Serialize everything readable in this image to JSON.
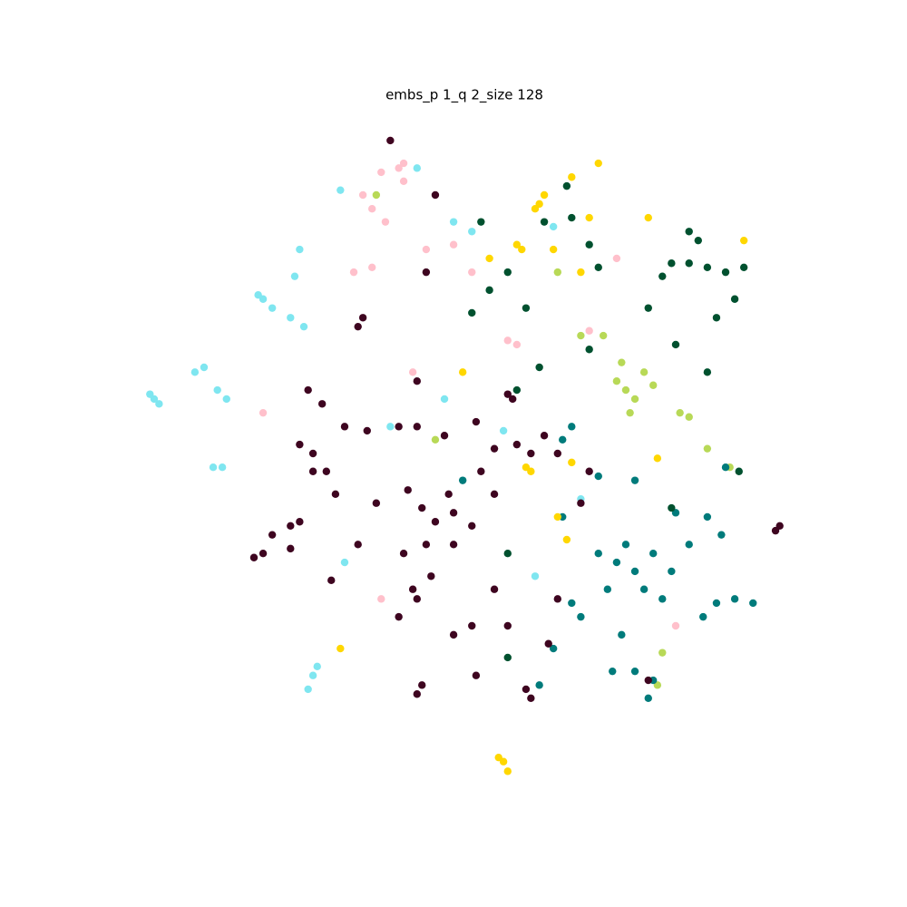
{
  "chart_data": {
    "type": "scatter",
    "title": "embs_p 1_q 2_size 128",
    "xlim": [
      0,
      100
    ],
    "ylim": [
      0,
      100
    ],
    "series": [
      {
        "color": "#7fe6f0",
        "x": [
          5.8,
          5.2,
          6.5,
          11.6,
          12.9,
          14.8,
          16.1,
          15.5,
          14.2,
          21.3,
          22.6,
          25.2,
          27.1,
          26.5,
          25.8,
          28.4,
          27.7,
          29.0,
          32.9,
          39.4,
          47.1,
          55.5,
          60.0,
          66.5,
          48.4,
          51.0,
          20.6,
          62.6,
          32.3,
          43.2
        ],
        "values": [
          57.9,
          58.6,
          57.2,
          61.8,
          62.5,
          59.2,
          57.9,
          48.0,
          48.0,
          72.4,
          71.1,
          69.7,
          68.4,
          79.6,
          75.7,
          17.8,
          15.8,
          19.1,
          34.2,
          53.9,
          57.9,
          53.3,
          32.2,
          43.4,
          83.6,
          82.2,
          73.0,
          82.9,
          88.2,
          91.4
        ]
      },
      {
        "color": "#ffc0cb",
        "x": [
          39.4,
          38.1,
          40.6,
          36.8,
          38.7,
          41.3,
          35.5,
          34.2,
          36.8,
          44.5,
          48.4,
          51.0,
          56.1,
          57.4,
          67.7,
          71.6,
          21.3,
          38.1,
          80.0,
          42.6,
          41.3
        ],
        "values": [
          95.4,
          90.8,
          91.4,
          85.5,
          83.6,
          89.5,
          87.5,
          76.3,
          77.0,
          79.6,
          80.3,
          76.3,
          66.4,
          65.8,
          67.8,
          78.3,
          55.9,
          28.9,
          25.0,
          61.8,
          92.1
        ]
      },
      {
        "color": "#b8d957",
        "x": [
          72.9,
          74.2,
          71.6,
          75.5,
          73.5,
          76.8,
          72.3,
          80.6,
          81.9,
          84.5,
          87.7,
          78.1,
          77.4,
          69.7,
          66.5,
          45.8,
          37.4,
          63.2
        ],
        "values": [
          59.2,
          57.9,
          60.5,
          61.8,
          55.9,
          59.9,
          63.2,
          55.9,
          55.3,
          50.7,
          48.0,
          21.1,
          16.4,
          67.1,
          67.1,
          52.0,
          87.5,
          76.3
        ]
      },
      {
        "color": "#007b7b",
        "x": [
          71.6,
          74.2,
          72.9,
          76.8,
          70.3,
          75.5,
          69.0,
          79.4,
          78.1,
          81.9,
          86.5,
          85.8,
          88.4,
          91.0,
          83.9,
          72.3,
          74.2,
          76.8,
          76.1,
          71.0,
          66.5,
          65.2,
          80.0,
          84.5,
          74.2,
          65.2,
          63.9,
          69.0,
          49.7,
          60.6,
          62.6,
          87.1,
          63.9
        ],
        "values": [
          34.2,
          32.9,
          36.8,
          35.5,
          30.3,
          30.3,
          35.5,
          32.9,
          28.9,
          36.8,
          38.2,
          28.3,
          28.9,
          28.3,
          26.3,
          23.7,
          18.4,
          17.1,
          14.5,
          18.4,
          26.3,
          28.3,
          41.4,
          40.8,
          46.1,
          53.9,
          52.0,
          46.7,
          46.1,
          16.4,
          21.7,
          48.0,
          40.8
        ]
      },
      {
        "color": "#00512f",
        "x": [
          79.4,
          81.9,
          84.5,
          87.1,
          88.4,
          89.7,
          83.2,
          81.9,
          76.1,
          78.1,
          85.8,
          80.0,
          84.5,
          67.7,
          65.2,
          51.0,
          53.5,
          56.1,
          58.7,
          69.0,
          52.3,
          61.3,
          64.5,
          56.1,
          56.1,
          67.7,
          60.6,
          57.4,
          89.0,
          79.4
        ],
        "values": [
          77.6,
          77.6,
          77.0,
          76.3,
          72.4,
          77.0,
          80.9,
          82.2,
          71.1,
          75.7,
          69.7,
          65.8,
          61.8,
          80.3,
          84.2,
          70.4,
          73.7,
          76.3,
          71.1,
          77.0,
          83.6,
          83.6,
          88.8,
          35.5,
          20.4,
          65.1,
          62.5,
          59.2,
          47.4,
          42.1
        ]
      },
      {
        "color": "#ffd700",
        "x": [
          57.4,
          58.1,
          60.6,
          61.3,
          60.0,
          65.2,
          67.7,
          69.0,
          76.1,
          89.7,
          62.6,
          66.5,
          58.7,
          59.4,
          65.2,
          63.2,
          64.5,
          77.4,
          55.5,
          56.1,
          54.8,
          49.7,
          32.3,
          53.5
        ],
        "values": [
          80.3,
          79.6,
          86.2,
          87.5,
          85.5,
          90.1,
          84.2,
          92.1,
          84.2,
          80.9,
          79.6,
          76.3,
          48.0,
          47.4,
          48.7,
          40.8,
          37.5,
          49.3,
          5.3,
          3.9,
          5.9,
          61.8,
          21.7,
          78.3
        ]
      },
      {
        "color": "#3e0520",
        "x": [
          35.5,
          34.8,
          44.5,
          43.2,
          27.7,
          29.7,
          26.5,
          28.4,
          30.3,
          31.6,
          28.4,
          32.9,
          36.1,
          40.6,
          41.9,
          43.9,
          45.8,
          48.4,
          47.7,
          51.0,
          44.5,
          41.3,
          42.6,
          43.2,
          40.6,
          45.2,
          48.4,
          37.4,
          22.6,
          21.3,
          20.0,
          25.2,
          26.5,
          25.2,
          31.0,
          34.8,
          56.8,
          56.1,
          51.6,
          54.2,
          57.4,
          59.4,
          61.3,
          63.2,
          67.7,
          66.5,
          54.2,
          52.3,
          43.2,
          43.9,
          58.7,
          59.4,
          54.2,
          56.1,
          48.4,
          51.0,
          61.9,
          51.6,
          63.2,
          94.2,
          94.8,
          76.1,
          47.1,
          43.2,
          45.8,
          39.4
        ],
        "values": [
          69.7,
          68.4,
          76.3,
          60.5,
          59.2,
          57.2,
          51.3,
          50.0,
          47.4,
          44.1,
          47.4,
          53.9,
          53.3,
          53.9,
          44.7,
          42.1,
          40.1,
          41.4,
          44.1,
          39.5,
          36.8,
          35.5,
          30.3,
          28.9,
          26.3,
          32.2,
          36.8,
          42.8,
          38.2,
          35.5,
          34.9,
          39.5,
          40.1,
          36.2,
          31.6,
          36.8,
          57.9,
          58.6,
          54.6,
          50.7,
          51.3,
          50.0,
          52.6,
          50.0,
          47.4,
          42.8,
          44.1,
          47.4,
          15.1,
          16.4,
          15.8,
          14.5,
          30.3,
          25.0,
          23.7,
          25.0,
          22.4,
          17.8,
          28.9,
          38.8,
          39.5,
          17.1,
          52.6,
          53.9,
          87.5,
          95.4
        ]
      }
    ]
  }
}
